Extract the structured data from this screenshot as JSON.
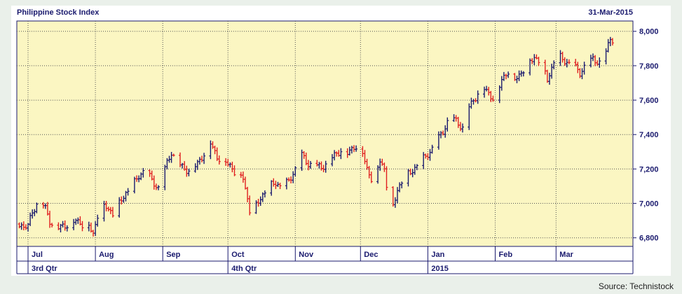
{
  "header": {
    "title": "Philippine Stock Index",
    "date": "31-Mar-2015"
  },
  "footer": {
    "source": "Source: Technistock"
  },
  "colors": {
    "plot_bg": "#fbf6c2",
    "up": "#1a1a6e",
    "down": "#e02020",
    "axis": "#1a1a6e",
    "grid": "#555555"
  },
  "chart_data": {
    "type": "ohlc",
    "title": "Philippine Stock Index",
    "xlabel": "",
    "ylabel": "",
    "ylim": [
      6750,
      8060
    ],
    "y_ticks": [
      6800,
      7000,
      7200,
      7400,
      7600,
      7800,
      8000
    ],
    "y_tick_labels": [
      "6,800",
      "7,000",
      "7,200",
      "7,400",
      "7,600",
      "7,800",
      "8,000"
    ],
    "x_range_days": [
      0,
      275
    ],
    "months": [
      {
        "label": "Jul",
        "day": 0
      },
      {
        "label": "Aug",
        "day": 31
      },
      {
        "label": "Sep",
        "day": 62
      },
      {
        "label": "Oct",
        "day": 92
      },
      {
        "label": "Nov",
        "day": 123
      },
      {
        "label": "Dec",
        "day": 153
      },
      {
        "label": "Jan",
        "day": 184
      },
      {
        "label": "Feb",
        "day": 215
      },
      {
        "label": "Mar",
        "day": 243
      }
    ],
    "quarters": [
      {
        "label": "3rd Qtr",
        "day": 0
      },
      {
        "label": "4th Qtr",
        "day": 92
      },
      {
        "label": "2015",
        "day": 184
      }
    ],
    "grid": true,
    "series": [
      {
        "points": [
          {
            "x": -4,
            "y": 6880
          },
          {
            "x": -2,
            "y": 6860
          },
          {
            "x": 0,
            "y": 6870
          },
          {
            "x": 2,
            "y": 6950
          },
          {
            "x": 5,
            "y": 7020
          },
          {
            "x": 8,
            "y": 6970
          },
          {
            "x": 10,
            "y": 6900
          },
          {
            "x": 13,
            "y": 6850
          },
          {
            "x": 16,
            "y": 6870
          },
          {
            "x": 19,
            "y": 6880
          },
          {
            "x": 22,
            "y": 6900
          },
          {
            "x": 25,
            "y": 6880
          },
          {
            "x": 28,
            "y": 6870
          },
          {
            "x": 30,
            "y": 6820
          },
          {
            "x": 33,
            "y": 6990
          },
          {
            "x": 36,
            "y": 6980
          },
          {
            "x": 39,
            "y": 6940
          },
          {
            "x": 42,
            "y": 7000
          },
          {
            "x": 45,
            "y": 7060
          },
          {
            "x": 48,
            "y": 7100
          },
          {
            "x": 51,
            "y": 7160
          },
          {
            "x": 54,
            "y": 7200
          },
          {
            "x": 57,
            "y": 7130
          },
          {
            "x": 60,
            "y": 7090
          },
          {
            "x": 63,
            "y": 7200
          },
          {
            "x": 66,
            "y": 7300
          },
          {
            "x": 69,
            "y": 7230
          },
          {
            "x": 72,
            "y": 7200
          },
          {
            "x": 75,
            "y": 7190
          },
          {
            "x": 78,
            "y": 7230
          },
          {
            "x": 81,
            "y": 7290
          },
          {
            "x": 84,
            "y": 7350
          },
          {
            "x": 87,
            "y": 7270
          },
          {
            "x": 90,
            "y": 7250
          },
          {
            "x": 93,
            "y": 7220
          },
          {
            "x": 96,
            "y": 7170
          },
          {
            "x": 99,
            "y": 7150
          },
          {
            "x": 102,
            "y": 6960
          },
          {
            "x": 105,
            "y": 6990
          },
          {
            "x": 108,
            "y": 7050
          },
          {
            "x": 111,
            "y": 7100
          },
          {
            "x": 114,
            "y": 7120
          },
          {
            "x": 117,
            "y": 7090
          },
          {
            "x": 120,
            "y": 7130
          },
          {
            "x": 123,
            "y": 7200
          },
          {
            "x": 126,
            "y": 7280
          },
          {
            "x": 129,
            "y": 7230
          },
          {
            "x": 132,
            "y": 7220
          },
          {
            "x": 135,
            "y": 7210
          },
          {
            "x": 138,
            "y": 7240
          },
          {
            "x": 141,
            "y": 7280
          },
          {
            "x": 144,
            "y": 7310
          },
          {
            "x": 147,
            "y": 7290
          },
          {
            "x": 150,
            "y": 7330
          },
          {
            "x": 153,
            "y": 7340
          },
          {
            "x": 156,
            "y": 7200
          },
          {
            "x": 159,
            "y": 7120
          },
          {
            "x": 162,
            "y": 7250
          },
          {
            "x": 164,
            "y": 7200
          },
          {
            "x": 167,
            "y": 6930
          },
          {
            "x": 170,
            "y": 7080
          },
          {
            "x": 173,
            "y": 7150
          },
          {
            "x": 176,
            "y": 7180
          },
          {
            "x": 179,
            "y": 7220
          },
          {
            "x": 182,
            "y": 7260
          },
          {
            "x": 185,
            "y": 7300
          },
          {
            "x": 188,
            "y": 7360
          },
          {
            "x": 191,
            "y": 7420
          },
          {
            "x": 194,
            "y": 7500
          },
          {
            "x": 197,
            "y": 7480
          },
          {
            "x": 200,
            "y": 7440
          },
          {
            "x": 203,
            "y": 7560
          },
          {
            "x": 206,
            "y": 7620
          },
          {
            "x": 209,
            "y": 7680
          },
          {
            "x": 212,
            "y": 7640
          },
          {
            "x": 215,
            "y": 7600
          },
          {
            "x": 218,
            "y": 7720
          },
          {
            "x": 221,
            "y": 7770
          },
          {
            "x": 224,
            "y": 7720
          },
          {
            "x": 227,
            "y": 7760
          },
          {
            "x": 230,
            "y": 7810
          },
          {
            "x": 233,
            "y": 7850
          },
          {
            "x": 236,
            "y": 7820
          },
          {
            "x": 239,
            "y": 7720
          },
          {
            "x": 242,
            "y": 7820
          },
          {
            "x": 245,
            "y": 7850
          },
          {
            "x": 248,
            "y": 7820
          },
          {
            "x": 251,
            "y": 7800
          },
          {
            "x": 254,
            "y": 7760
          },
          {
            "x": 257,
            "y": 7810
          },
          {
            "x": 260,
            "y": 7840
          },
          {
            "x": 263,
            "y": 7820
          },
          {
            "x": 266,
            "y": 7880
          },
          {
            "x": 268,
            "y": 7960
          },
          {
            "x": 270,
            "y": 7950
          }
        ]
      }
    ]
  }
}
